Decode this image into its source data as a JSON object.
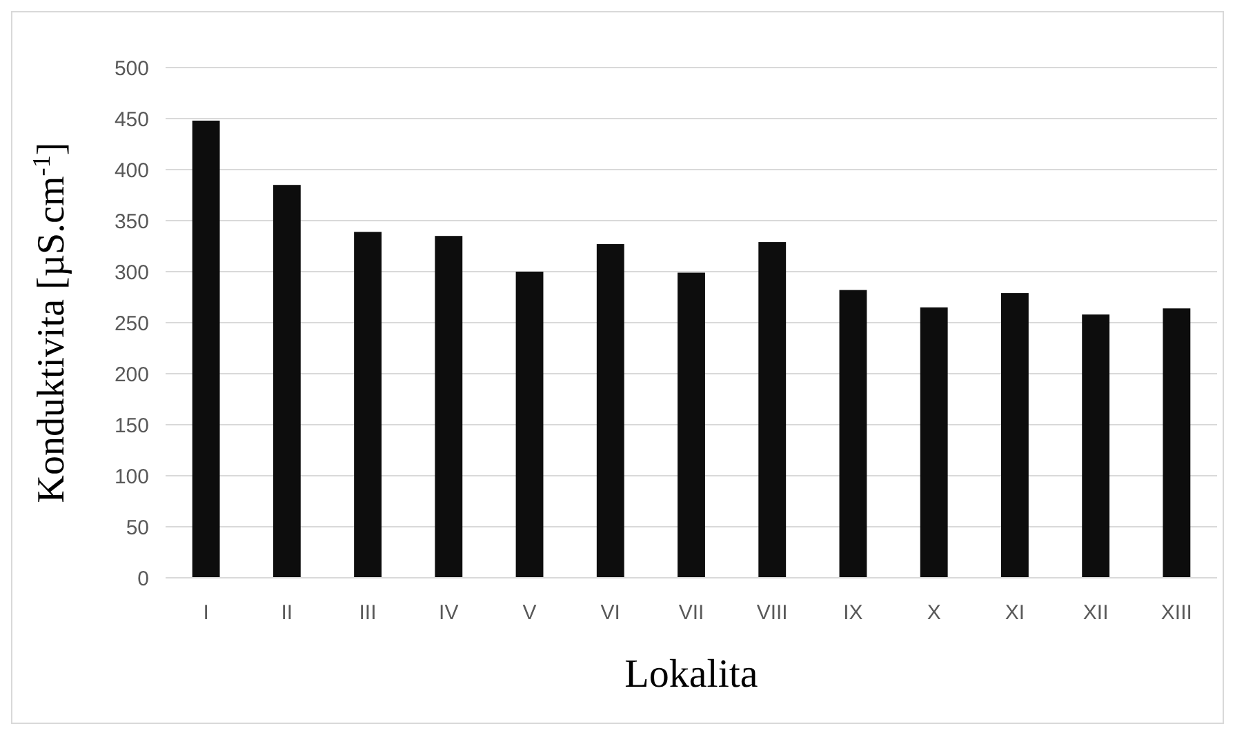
{
  "chart_data": {
    "type": "bar",
    "xlabel": "Lokalita",
    "ylabel": "Konduktivita [µS.cm$^{-1}$]",
    "categories": [
      "I",
      "II",
      "III",
      "IV",
      "V",
      "VI",
      "VII",
      "VIII",
      "IX",
      "X",
      "XI",
      "XII",
      "XIII"
    ],
    "values": [
      448,
      385,
      339,
      335,
      300,
      327,
      299,
      329,
      282,
      265,
      279,
      258,
      264
    ],
    "color": "#0d0d0d",
    "ylim": [
      0,
      500
    ],
    "yticks": [
      0,
      50,
      100,
      150,
      200,
      250,
      300,
      350,
      400,
      450,
      500
    ],
    "grid": "y"
  }
}
